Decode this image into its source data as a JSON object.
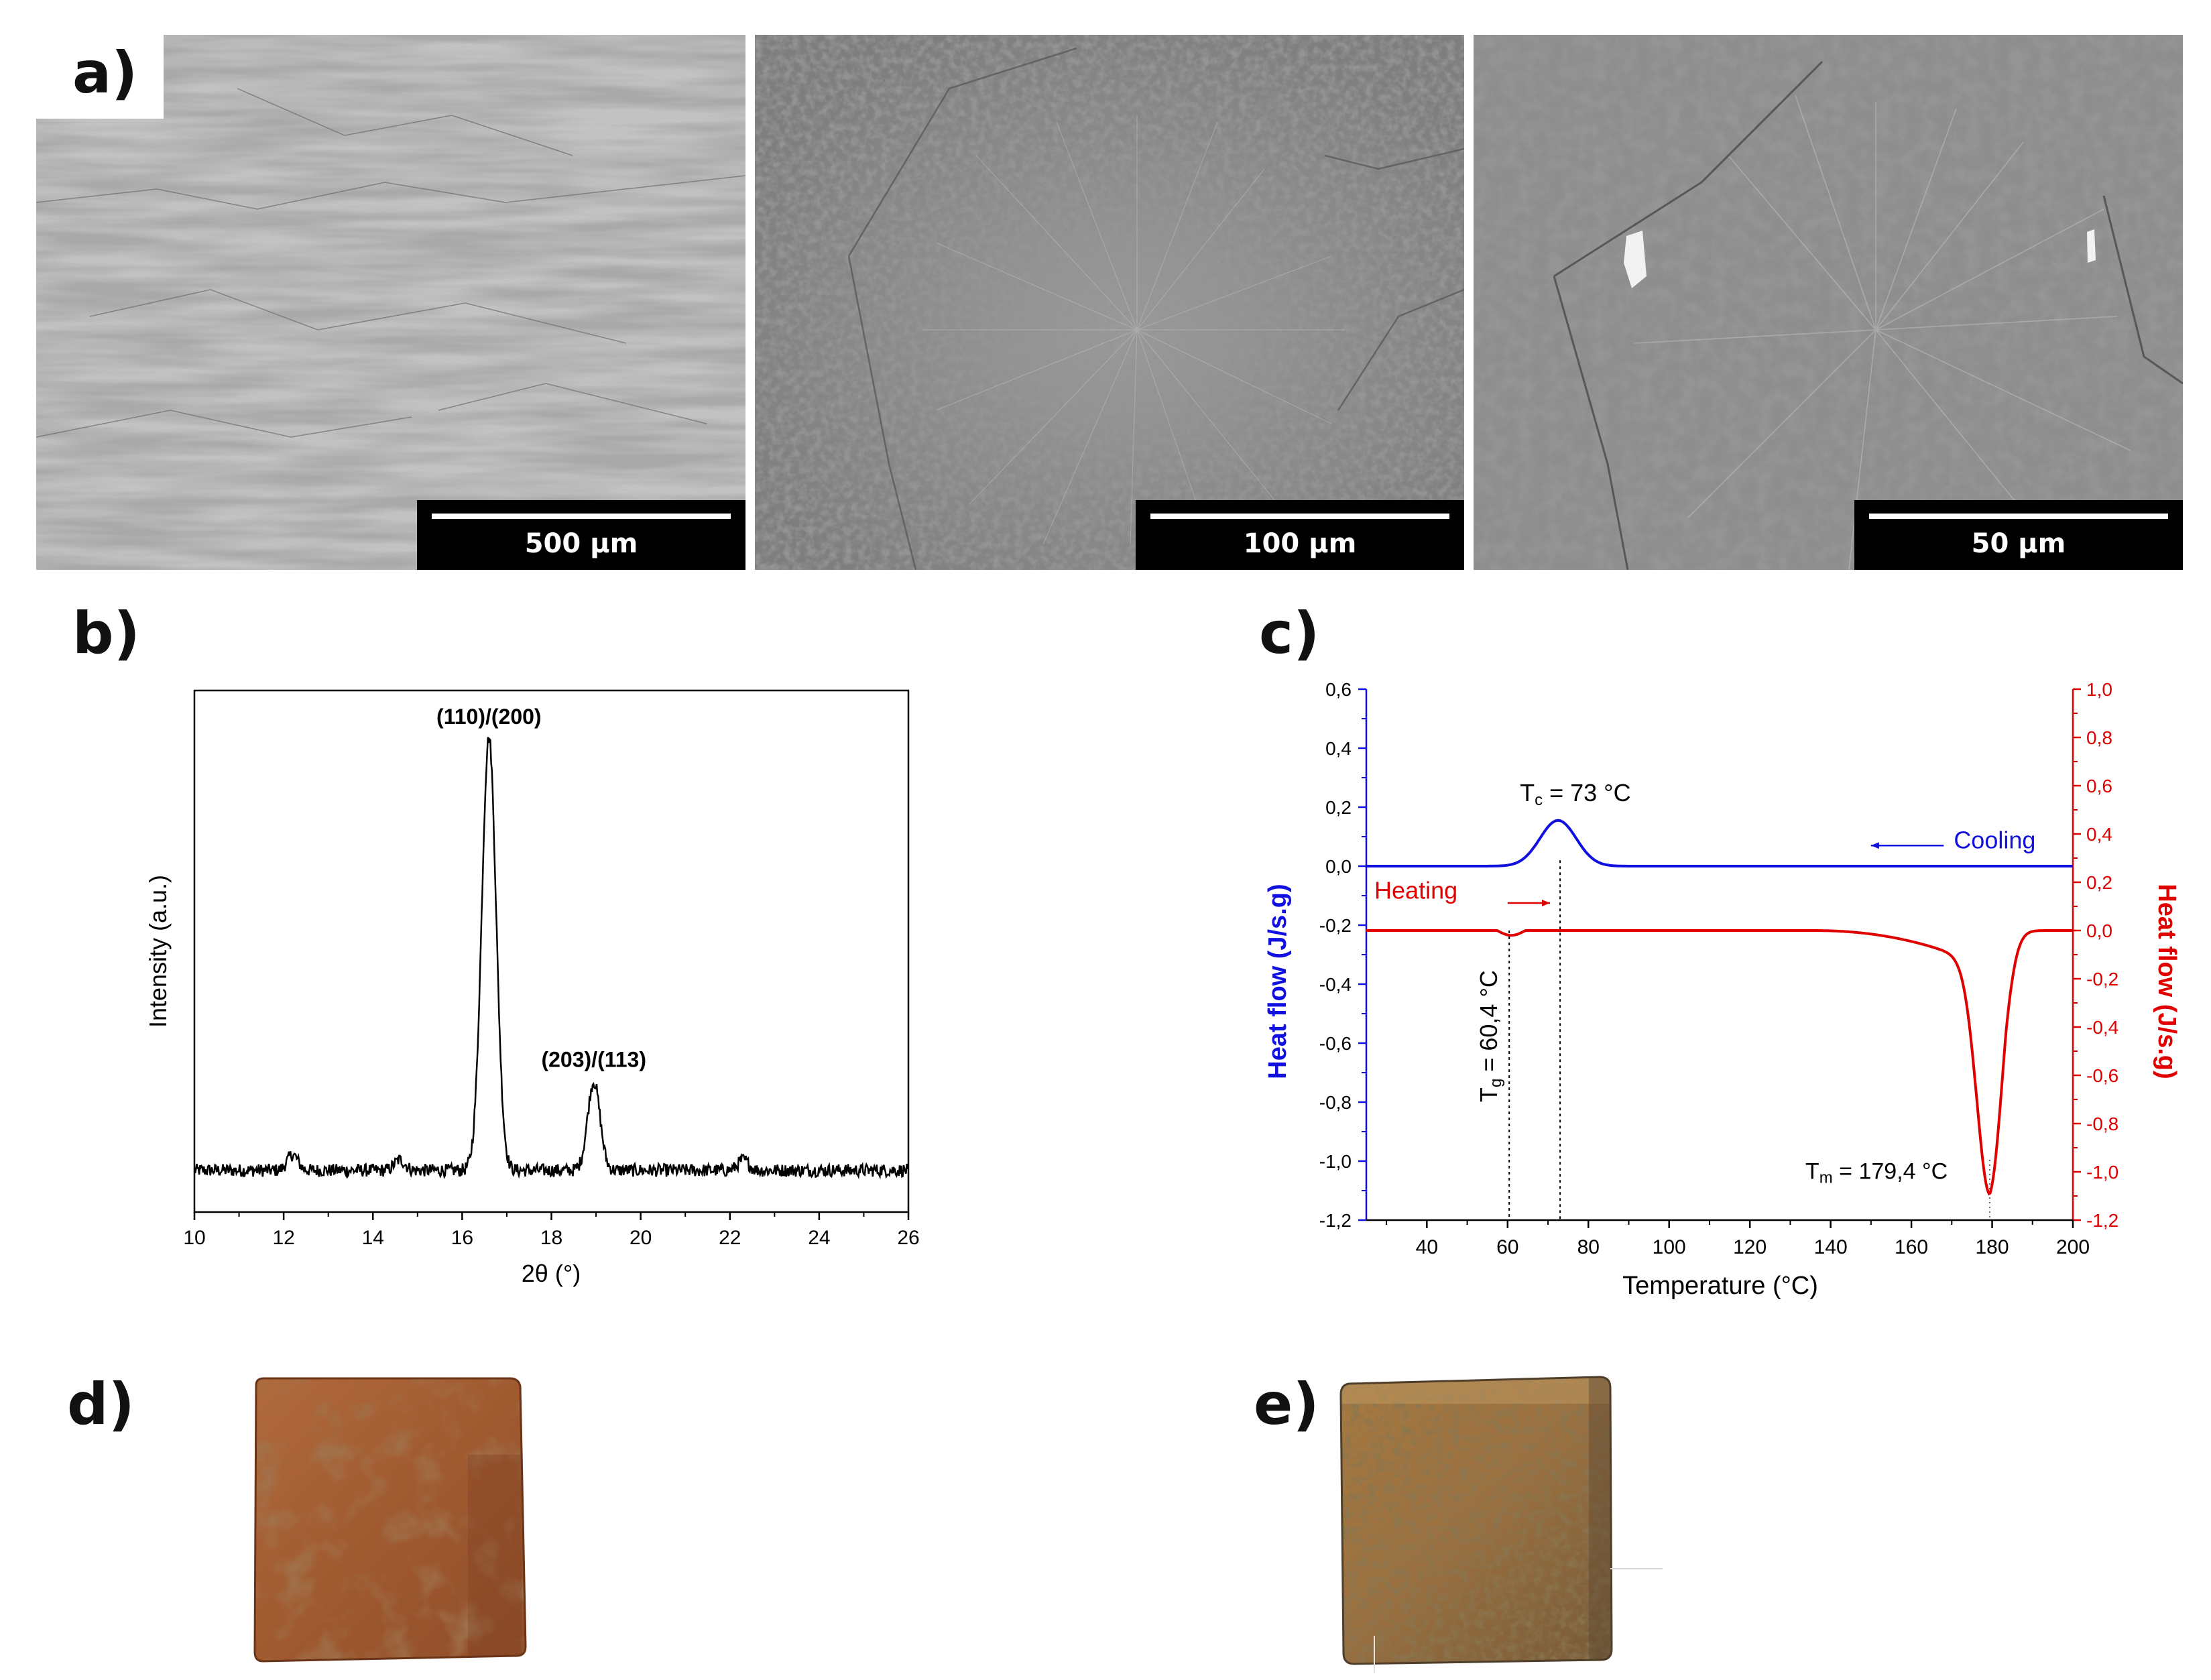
{
  "panels": {
    "a": {
      "label": "a)"
    },
    "b": {
      "label": "b)"
    },
    "c": {
      "label": "c)"
    },
    "d": {
      "label": "d)"
    },
    "e": {
      "label": "e)"
    }
  },
  "sem_images": [
    {
      "scale_bar": "500 μm"
    },
    {
      "scale_bar": "100 μm"
    },
    {
      "scale_bar": "50 μm"
    }
  ],
  "chart_data": [
    {
      "type": "line",
      "xlabel": "2θ (°)",
      "ylabel": "Intensity (a.u.)",
      "xlim": [
        10,
        26
      ],
      "xticks": [
        10,
        12,
        14,
        16,
        18,
        20,
        22,
        24,
        26
      ],
      "y_relative": true,
      "baseline": 0.08,
      "peaks": [
        {
          "x": 16.6,
          "height": 0.83,
          "label": "(110)/(200)"
        },
        {
          "x": 18.95,
          "height": 0.17,
          "label": "(203)/(113)"
        }
      ],
      "minor_bumps": [
        {
          "x": 12.2,
          "height": 0.03
        },
        {
          "x": 14.6,
          "height": 0.02
        },
        {
          "x": 22.3,
          "height": 0.02
        }
      ],
      "color": "#000000"
    },
    {
      "type": "line",
      "xlabel": "Temperature (°C)",
      "ylabel_left": "Heat flow (J/s.g)",
      "ylabel_right": "Heat flow (J/s.g)",
      "xlim": [
        25,
        200
      ],
      "xticks": [
        40,
        60,
        80,
        100,
        120,
        140,
        160,
        180,
        200
      ],
      "ylim_left": [
        -1.2,
        0.6
      ],
      "yticks_left": [
        "0,6",
        "0,4",
        "0,2",
        "0,0",
        "-0,2",
        "-0,4",
        "-0,6",
        "-0,8",
        "-1,0",
        "-1,2"
      ],
      "ylim_right": [
        -1.2,
        1.0
      ],
      "yticks_right": [
        "1,0",
        "0,8",
        "0,6",
        "0,4",
        "0,2",
        "0,0",
        "-0,2",
        "-0,4",
        "-0,6",
        "-0,8",
        "-1,0",
        "-1,2"
      ],
      "series": [
        {
          "name": "Cooling",
          "axis": "left",
          "color": "#1010e0",
          "baseline": 0.0,
          "peaks": [
            {
              "x": 72.5,
              "height": 0.155,
              "width": 4.5
            }
          ]
        },
        {
          "name": "Heating",
          "axis": "right",
          "color": "#e00000",
          "baseline": 0.0,
          "glass_step": {
            "x": 60.4,
            "depth": -0.02
          },
          "melt_shoulder_start": 135,
          "peaks": [
            {
              "x": 179.4,
              "height": -1.06,
              "width": 3.2
            }
          ]
        }
      ],
      "annotations": {
        "tc": {
          "text_main": "T",
          "text_sub": "c",
          "text_rest": " = 73 °C",
          "x": 73
        },
        "tg": {
          "text_main": "T",
          "text_sub": "g",
          "text_rest": " = 60,4 °C",
          "x": 60.4
        },
        "tm": {
          "text_main": "T",
          "text_sub": "m",
          "text_rest": " = 179,4 °C",
          "x": 179.4
        },
        "cooling_label": "Cooling",
        "heating_label": "Heating"
      }
    }
  ]
}
